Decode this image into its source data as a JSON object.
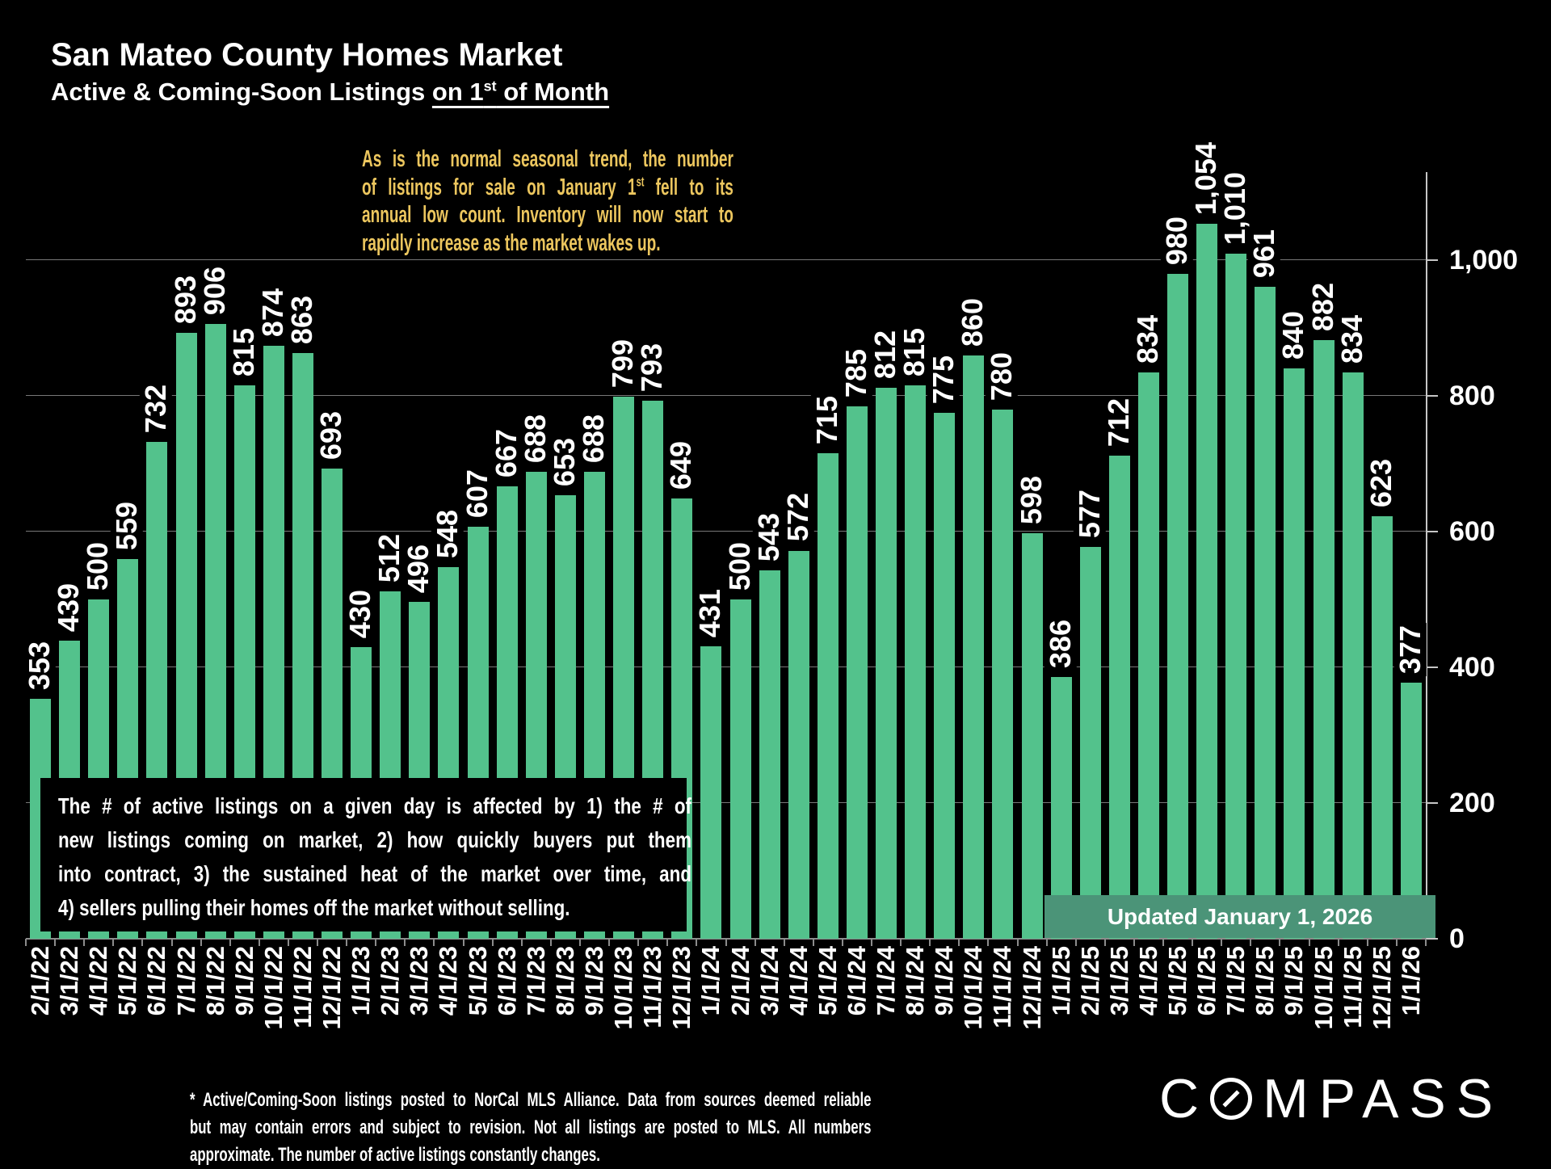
{
  "title": "San Mateo County Homes Market",
  "subtitle": {
    "pre": "Active & Coming-Soon Listings ",
    "underline_pre": "on 1",
    "sup": "st",
    "underline_post": " of Month"
  },
  "annotation": {
    "color": "#ecc65e",
    "line1": "As is the normal seasonal trend, the number",
    "line2_pre": "of listings for sale on January 1",
    "line2_sup": "st",
    "line2_post": " fell to its",
    "line3": "annual low count. Inventory will now start to",
    "line4": "rapidly increase as the market wakes up."
  },
  "note_box": {
    "lines": [
      "The # of active listings on a given day is affected by 1) the # of",
      "new listings coming on market, 2) how quickly buyers put them",
      "into contract, 3) the sustained heat of the market over time, and",
      "4) sellers pulling their homes off the market without selling."
    ]
  },
  "update_banner": {
    "label": "Updated January 1, 2026",
    "background": "#4b9478"
  },
  "footer": {
    "lines": [
      "* Active/Coming-Soon listings posted to NorCal MLS Alliance.  Data from sources deemed reliable",
      "but may contain errors and subject to revision.  Not all listings are posted to MLS. All numbers",
      "approximate. The number of active listings constantly changes."
    ]
  },
  "logo": {
    "pre": "C",
    "o_symbol": "compass-needle-o",
    "post": "MPASS"
  },
  "chart_data": {
    "type": "bar",
    "title": "San Mateo County Homes Market — Active & Coming-Soon Listings on 1st of Month",
    "xlabel": "",
    "ylabel": "",
    "axis_side": "right",
    "grid": "horizontal",
    "ylim": [
      0,
      1100
    ],
    "yticks": [
      0,
      200,
      400,
      600,
      800,
      1000
    ],
    "ytick_labels": [
      "0",
      "200",
      "400",
      "600",
      "800",
      "1,000"
    ],
    "bar_color": "#53c28c",
    "value_label_color": "#ffffff",
    "categories": [
      "2/1/22",
      "3/1/22",
      "4/1/22",
      "5/1/22",
      "6/1/22",
      "7/1/22",
      "8/1/22",
      "9/1/22",
      "10/1/22",
      "11/1/22",
      "12/1/22",
      "1/1/23",
      "2/1/23",
      "3/1/23",
      "4/1/23",
      "5/1/23",
      "6/1/23",
      "7/1/23",
      "8/1/23",
      "9/1/23",
      "10/1/23",
      "11/1/23",
      "12/1/23",
      "1/1/24",
      "2/1/24",
      "3/1/24",
      "4/1/24",
      "5/1/24",
      "6/1/24",
      "7/1/24",
      "8/1/24",
      "9/1/24",
      "10/1/24",
      "11/1/24",
      "12/1/24",
      "1/1/25",
      "2/1/25",
      "3/1/25",
      "4/1/25",
      "5/1/25",
      "6/1/25",
      "7/1/25",
      "8/1/25",
      "9/1/25",
      "10/1/25",
      "11/1/25",
      "12/1/25",
      "1/1/26"
    ],
    "values": [
      353,
      439,
      500,
      559,
      732,
      893,
      906,
      815,
      874,
      863,
      693,
      430,
      512,
      496,
      548,
      607,
      667,
      688,
      653,
      688,
      799,
      793,
      649,
      431,
      500,
      543,
      572,
      715,
      785,
      812,
      815,
      775,
      860,
      780,
      598,
      386,
      577,
      712,
      834,
      980,
      1054,
      1010,
      961,
      840,
      882,
      834,
      623,
      377
    ]
  }
}
